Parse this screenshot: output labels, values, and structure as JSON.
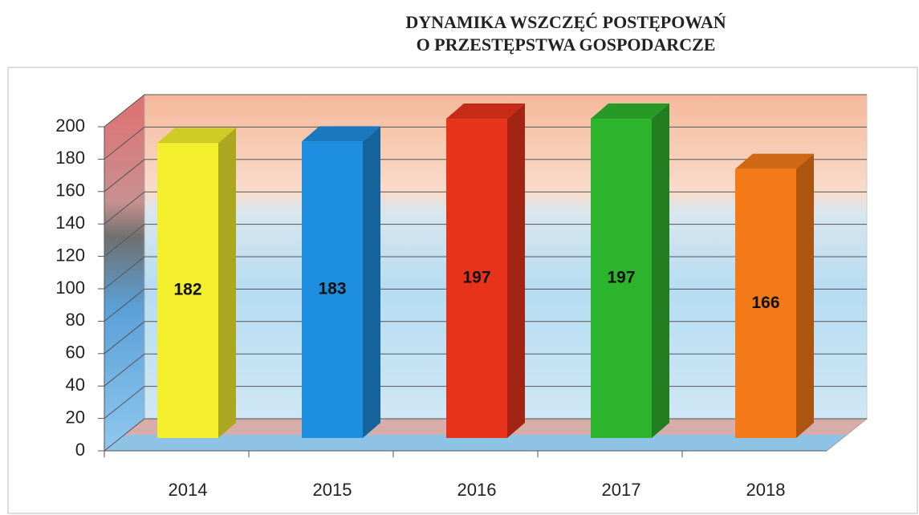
{
  "chart_data": {
    "type": "bar3d",
    "title": [
      "DYNAMIKA WSZCZĘĆ POSTĘPOWAŃ",
      "O PRZESTĘPSTWA GOSPODARCZE"
    ],
    "categories": [
      "2014",
      "2015",
      "2016",
      "2017",
      "2018"
    ],
    "values": [
      182,
      183,
      197,
      197,
      166
    ],
    "colors": [
      "#f4ef2c",
      "#1e8ee0",
      "#e8331b",
      "#2db42d",
      "#f47a18"
    ],
    "ylim": [
      0,
      200
    ],
    "yticks": [
      0,
      20,
      40,
      60,
      80,
      100,
      120,
      140,
      160,
      180,
      200
    ],
    "grid": true
  }
}
